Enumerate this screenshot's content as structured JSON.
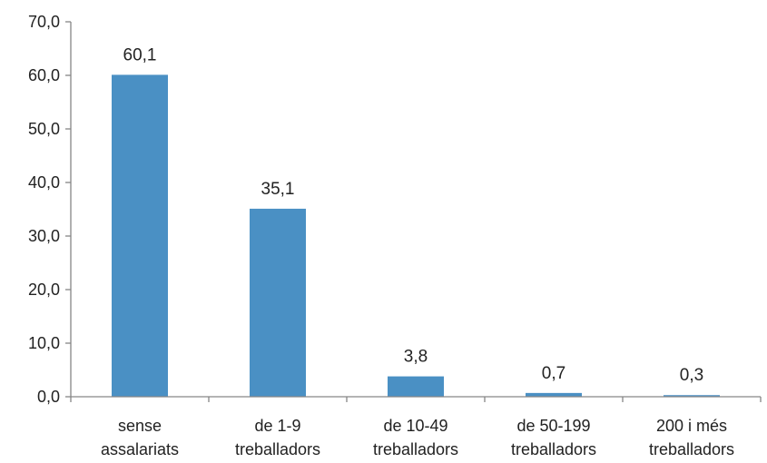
{
  "chart_data": {
    "type": "bar",
    "categories": [
      [
        "sense",
        "assalariats"
      ],
      [
        "de 1-9",
        "treballadors"
      ],
      [
        "de 10-49",
        "treballadors"
      ],
      [
        "de 50-199",
        "treballadors"
      ],
      [
        "200 i més",
        "treballadors"
      ]
    ],
    "values": [
      60.1,
      35.1,
      3.8,
      0.7,
      0.3
    ],
    "value_labels": [
      "60,1",
      "35,1",
      "3,8",
      "0,7",
      "0,3"
    ],
    "ylim": [
      0,
      70
    ],
    "yticks": [
      0,
      10,
      20,
      30,
      40,
      50,
      60,
      70
    ],
    "ytick_labels": [
      "0,0",
      "10,0",
      "20,0",
      "30,0",
      "40,0",
      "50,0",
      "60,0",
      "70,0"
    ],
    "grid": false,
    "legend": "none",
    "bar_color": "#4a90c4",
    "axis_color": "#868686"
  }
}
